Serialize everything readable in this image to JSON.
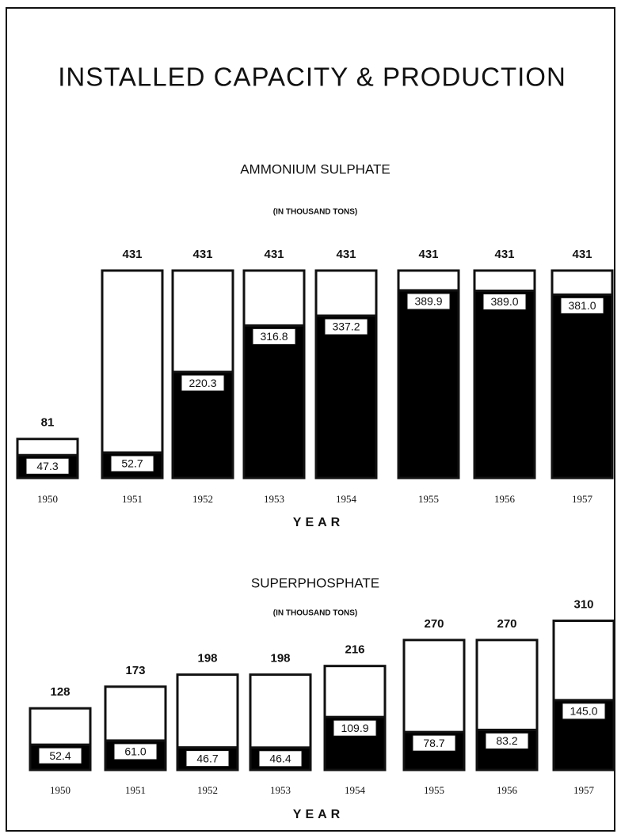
{
  "title": "INSTALLED CAPACITY & PRODUCTION",
  "chart_data": [
    {
      "type": "bar",
      "title": "AMMONIUM SULPHATE",
      "subtitle": "(IN THOUSAND TONS)",
      "x_label": "YEAR",
      "categories": [
        "1950",
        "1951",
        "1952",
        "1953",
        "1954",
        "1955",
        "1956",
        "1957"
      ],
      "series": [
        {
          "color": "#ffffff",
          "values": [
            81,
            431,
            431,
            431,
            431,
            431,
            431,
            431
          ]
        },
        {
          "color": "#000000",
          "values": [
            47.3,
            52.7,
            220.3,
            316.8,
            337.2,
            389.9,
            389.0,
            381.0
          ],
          "value_labels": [
            "47.3",
            "52.7",
            "220.3",
            "316.8",
            "337.2",
            "389.9",
            "389.0",
            "381.0"
          ]
        }
      ]
    },
    {
      "type": "bar",
      "title": "SUPERPHOSPHATE",
      "subtitle": "(IN THOUSAND TONS)",
      "x_label": "YEAR",
      "categories": [
        "1950",
        "1951",
        "1952",
        "1953",
        "1954",
        "1955",
        "1956",
        "1957"
      ],
      "series": [
        {
          "color": "#ffffff",
          "values": [
            128,
            173,
            198,
            198,
            216,
            270,
            270,
            310
          ]
        },
        {
          "color": "#000000",
          "values": [
            52.4,
            61.0,
            46.7,
            46.4,
            109.9,
            78.7,
            83.2,
            145.0
          ],
          "value_labels": [
            "52.4",
            "61.0",
            "46.7",
            "46.4",
            "109.9",
            "78.7",
            "83.2",
            "145.0"
          ]
        }
      ]
    }
  ]
}
